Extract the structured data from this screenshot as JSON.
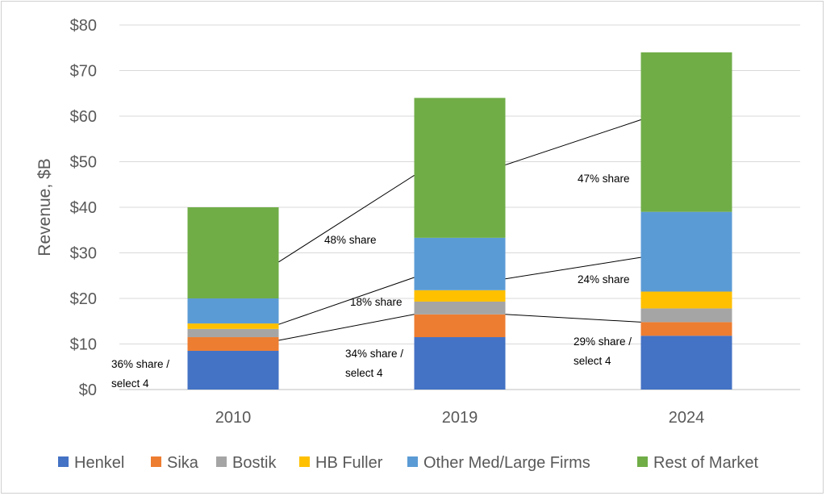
{
  "chart_data": {
    "type": "bar",
    "stacked": true,
    "ylabel": "Revenue, $B",
    "ylim": [
      0,
      80
    ],
    "y_ticks": [
      "$0",
      "$10",
      "$20",
      "$30",
      "$40",
      "$50",
      "$60",
      "$70",
      "$80"
    ],
    "y_tick_values": [
      0,
      10,
      20,
      30,
      40,
      50,
      60,
      70,
      80
    ],
    "categories": [
      "2010",
      "2019",
      "2024"
    ],
    "grid": true,
    "legend_position": "bottom",
    "series": [
      {
        "name": "Henkel",
        "color": "#4472C4",
        "values": [
          8.5,
          11.5,
          11.8
        ]
      },
      {
        "name": "Sika",
        "color": "#ED7D31",
        "values": [
          3.0,
          5.0,
          3.0
        ]
      },
      {
        "name": "Bostik",
        "color": "#A5A5A5",
        "values": [
          1.8,
          2.8,
          3.0
        ]
      },
      {
        "name": "HB Fuller",
        "color": "#FFC000",
        "values": [
          1.2,
          2.5,
          3.7
        ]
      },
      {
        "name": "Other Med/Large Firms",
        "color": "#5B9BD5",
        "values": [
          5.5,
          11.5,
          17.5
        ]
      },
      {
        "name": "Rest of Market",
        "color": "#70AD47",
        "values": [
          20.0,
          30.7,
          35.0
        ]
      }
    ],
    "annotations": [
      {
        "lines": [
          "48% share"
        ]
      },
      {
        "lines": [
          "47% share"
        ]
      },
      {
        "lines": [
          "18% share"
        ]
      },
      {
        "lines": [
          "24% share"
        ]
      },
      {
        "lines": [
          "36% share /",
          "select 4"
        ]
      },
      {
        "lines": [
          "34% share /",
          "select 4"
        ]
      },
      {
        "lines": [
          "29% share /",
          "select 4"
        ]
      }
    ]
  }
}
